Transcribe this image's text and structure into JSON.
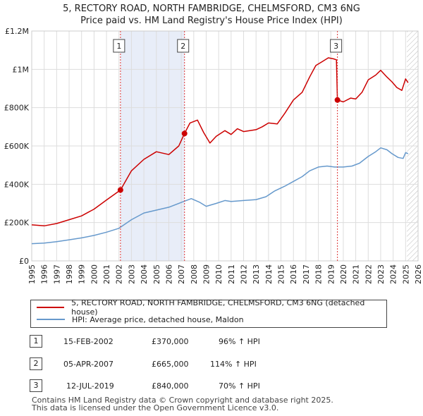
{
  "header": {
    "title_line1": "5, RECTORY ROAD, NORTH FAMBRIDGE, CHELMSFORD, CM3 6NG",
    "title_line2": "Price paid vs. HM Land Registry's House Price Index (HPI)"
  },
  "chart_data": {
    "type": "line",
    "x_range": [
      1995,
      2026
    ],
    "ylim": [
      0,
      1200000
    ],
    "y_ticks": [
      0,
      200000,
      400000,
      600000,
      800000,
      1000000,
      1200000
    ],
    "y_tick_labels": [
      "£0",
      "£200K",
      "£400K",
      "£600K",
      "£800K",
      "£1M",
      "£1.2M"
    ],
    "x_tick_labels": [
      "1995",
      "1996",
      "1997",
      "1998",
      "1999",
      "2000",
      "2001",
      "2002",
      "2003",
      "2004",
      "2005",
      "2006",
      "2007",
      "2008",
      "2009",
      "2010",
      "2011",
      "2012",
      "2013",
      "2014",
      "2015",
      "2016",
      "2017",
      "2018",
      "2019",
      "2020",
      "2021",
      "2022",
      "2023",
      "2024",
      "2025",
      "2026"
    ],
    "shaded_spans": [
      [
        2002.12,
        2007.26
      ]
    ],
    "hatched_from": 2025.1,
    "series": [
      {
        "name": "5, RECTORY ROAD, NORTH FAMBRIDGE, CHELMSFORD, CM3 6NG (detached house)",
        "color": "#cc0000",
        "points": [
          [
            1995.0,
            188000
          ],
          [
            1996.0,
            183000
          ],
          [
            1997.0,
            195000
          ],
          [
            1998.0,
            215000
          ],
          [
            1999.0,
            235000
          ],
          [
            2000.0,
            270000
          ],
          [
            2001.0,
            318000
          ],
          [
            2002.12,
            370000
          ],
          [
            2003.0,
            470000
          ],
          [
            2004.0,
            530000
          ],
          [
            2005.0,
            570000
          ],
          [
            2006.0,
            555000
          ],
          [
            2006.8,
            600000
          ],
          [
            2007.26,
            665000
          ],
          [
            2007.7,
            720000
          ],
          [
            2008.3,
            735000
          ],
          [
            2008.8,
            670000
          ],
          [
            2009.3,
            615000
          ],
          [
            2009.8,
            650000
          ],
          [
            2010.5,
            680000
          ],
          [
            2011.0,
            660000
          ],
          [
            2011.5,
            690000
          ],
          [
            2012.0,
            675000
          ],
          [
            2012.5,
            680000
          ],
          [
            2013.0,
            685000
          ],
          [
            2013.5,
            700000
          ],
          [
            2014.0,
            720000
          ],
          [
            2014.7,
            715000
          ],
          [
            2015.3,
            770000
          ],
          [
            2016.0,
            840000
          ],
          [
            2016.7,
            880000
          ],
          [
            2017.3,
            960000
          ],
          [
            2017.8,
            1020000
          ],
          [
            2018.3,
            1040000
          ],
          [
            2018.8,
            1060000
          ],
          [
            2019.2,
            1055000
          ],
          [
            2019.45,
            1050000
          ],
          [
            2019.53,
            840000
          ],
          [
            2020.0,
            830000
          ],
          [
            2020.6,
            850000
          ],
          [
            2021.0,
            845000
          ],
          [
            2021.5,
            880000
          ],
          [
            2022.0,
            945000
          ],
          [
            2022.6,
            970000
          ],
          [
            2023.0,
            995000
          ],
          [
            2023.5,
            960000
          ],
          [
            2023.9,
            935000
          ],
          [
            2024.3,
            905000
          ],
          [
            2024.7,
            890000
          ],
          [
            2025.0,
            950000
          ],
          [
            2025.2,
            930000
          ]
        ]
      },
      {
        "name": "HPI: Average price, detached house, Maldon",
        "color": "#6699cc",
        "points": [
          [
            1995.0,
            90000
          ],
          [
            1996.0,
            93000
          ],
          [
            1997.0,
            100000
          ],
          [
            1998.0,
            110000
          ],
          [
            1999.0,
            120000
          ],
          [
            2000.0,
            133000
          ],
          [
            2001.0,
            150000
          ],
          [
            2002.0,
            170000
          ],
          [
            2003.0,
            215000
          ],
          [
            2004.0,
            250000
          ],
          [
            2005.0,
            265000
          ],
          [
            2006.0,
            280000
          ],
          [
            2007.0,
            305000
          ],
          [
            2007.8,
            325000
          ],
          [
            2008.5,
            305000
          ],
          [
            2009.0,
            285000
          ],
          [
            2009.8,
            300000
          ],
          [
            2010.5,
            315000
          ],
          [
            2011.0,
            310000
          ],
          [
            2012.0,
            315000
          ],
          [
            2013.0,
            320000
          ],
          [
            2013.8,
            335000
          ],
          [
            2014.5,
            365000
          ],
          [
            2015.3,
            390000
          ],
          [
            2016.0,
            415000
          ],
          [
            2016.7,
            440000
          ],
          [
            2017.3,
            470000
          ],
          [
            2018.0,
            490000
          ],
          [
            2018.7,
            495000
          ],
          [
            2019.3,
            490000
          ],
          [
            2020.0,
            490000
          ],
          [
            2020.7,
            495000
          ],
          [
            2021.3,
            510000
          ],
          [
            2022.0,
            545000
          ],
          [
            2022.6,
            570000
          ],
          [
            2023.0,
            590000
          ],
          [
            2023.5,
            580000
          ],
          [
            2023.9,
            560000
          ],
          [
            2024.4,
            540000
          ],
          [
            2024.8,
            535000
          ],
          [
            2025.0,
            565000
          ],
          [
            2025.2,
            560000
          ]
        ]
      }
    ],
    "sales": [
      {
        "num": "1",
        "x": 2002.12,
        "price": 370000
      },
      {
        "num": "2",
        "x": 2007.26,
        "price": 665000
      },
      {
        "num": "3",
        "x": 2019.53,
        "price": 840000
      }
    ],
    "xlabel": "",
    "ylabel": "",
    "grid": true
  },
  "legend": {
    "property_label": "5, RECTORY ROAD, NORTH FAMBRIDGE, CHELMSFORD, CM3 6NG (detached house)",
    "hpi_label": "HPI: Average price, detached house, Maldon"
  },
  "sales_table": [
    {
      "num": "1",
      "date": "15-FEB-2002",
      "price": "£370,000",
      "hpi": "96% ↑ HPI"
    },
    {
      "num": "2",
      "date": "05-APR-2007",
      "price": "£665,000",
      "hpi": "114% ↑ HPI"
    },
    {
      "num": "3",
      "date": "12-JUL-2019",
      "price": "£840,000",
      "hpi": "70% ↑ HPI"
    }
  ],
  "footer": {
    "line1": "Contains HM Land Registry data © Crown copyright and database right 2025.",
    "line2": "This data is licensed under the Open Government Licence v3.0."
  }
}
